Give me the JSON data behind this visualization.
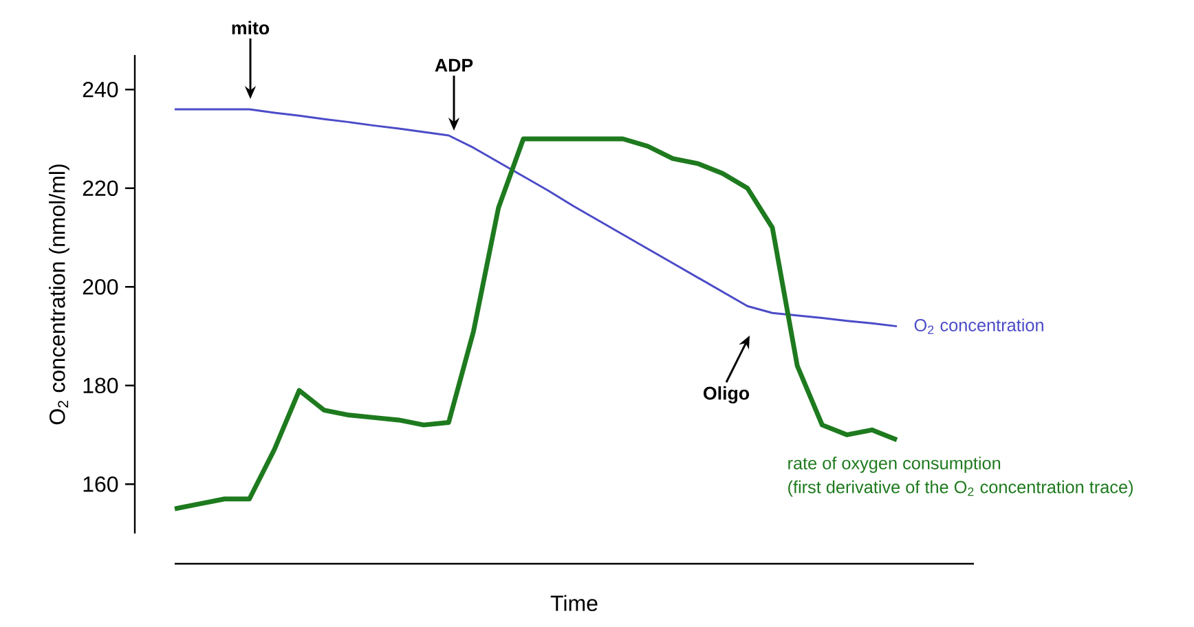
{
  "chart_data": {
    "type": "line",
    "xlabel": "Time",
    "ylabel": "O$_{2}$ concentration (nmol/ml)",
    "categories": [
      null,
      null,
      null,
      null,
      null,
      null,
      null,
      null,
      null,
      null,
      null,
      null,
      null,
      null,
      null,
      null,
      null,
      null,
      null,
      null,
      null,
      null,
      null,
      null,
      null,
      null,
      null,
      null,
      null,
      null
    ],
    "ylim": [
      150,
      247
    ],
    "yticks": [
      160,
      180,
      200,
      220,
      240
    ],
    "tick_labels": "y",
    "series": [
      {
        "name": "O$_{2}$ concentration",
        "color": "#4b4bc8",
        "values": [
          236,
          236,
          236,
          236,
          235.3,
          234.7,
          234,
          233.4,
          232.7,
          232.1,
          231.4,
          230.7,
          228.2,
          225.3,
          222.4,
          219.5,
          216.4,
          213.5,
          210.6,
          207.7,
          204.8,
          201.9,
          199,
          196.1,
          194.7,
          194.2,
          193.7,
          193.1,
          192.6,
          192
        ]
      },
      {
        "name": "rate of oxygen consumption",
        "color": "#1e7a1e",
        "values": [
          155,
          156,
          157,
          157,
          167,
          179,
          175,
          174,
          173.5,
          173,
          172,
          172.5,
          191,
          216,
          230,
          230,
          230,
          230,
          230,
          228.5,
          226,
          225,
          223,
          220,
          212,
          184,
          172,
          170,
          171,
          169
        ]
      }
    ],
    "annotations": [
      "mito",
      "ADP",
      "Oligo",
      "(first derivative of the O$_{2}$ concentration trace)"
    ]
  }
}
